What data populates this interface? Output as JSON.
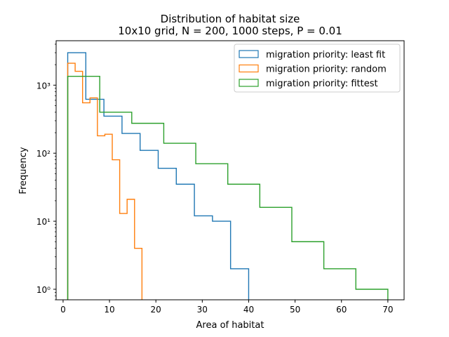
{
  "chart_data": {
    "type": "histogram",
    "title": "Distribution of habitat size",
    "subtitle": "10x10 grid, N = 200, 1000 steps, P = 0.01",
    "xlabel": "Area of habitat",
    "ylabel": "Frequency",
    "xlim": [
      -1.5,
      73.5
    ],
    "ylim": [
      0.7,
      4500
    ],
    "yscale": "log",
    "xticks": [
      0,
      10,
      20,
      30,
      40,
      50,
      60,
      70
    ],
    "xtick_labels": [
      "0",
      "10",
      "20",
      "30",
      "40",
      "50",
      "60",
      "70"
    ],
    "yticks": [
      1,
      10,
      100,
      1000
    ],
    "ytick_labels": [
      "10⁰",
      "10¹",
      "10²",
      "10³"
    ],
    "legend_position": "top-right",
    "series": [
      {
        "name": "migration priority: least fit",
        "color": "#1f77b4",
        "bin_edges": [
          1,
          4.9,
          8.8,
          12.7,
          16.6,
          20.5,
          24.4,
          28.3,
          32.2,
          36.1,
          40
        ],
        "counts": [
          3000,
          620,
          350,
          195,
          110,
          60,
          35,
          12,
          10,
          2
        ]
      },
      {
        "name": "migration priority: random",
        "color": "#ff7f0e",
        "bin_edges": [
          1,
          2.6,
          4.2,
          5.8,
          7.4,
          9.0,
          10.6,
          12.2,
          13.8,
          15.4,
          17
        ],
        "counts": [
          2100,
          1600,
          550,
          650,
          180,
          190,
          80,
          13,
          21,
          4
        ]
      },
      {
        "name": "migration priority: fittest",
        "color": "#2ca02c",
        "bin_edges": [
          1,
          7.9,
          14.8,
          21.7,
          28.6,
          35.5,
          42.4,
          49.3,
          56.2,
          63.1,
          70
        ],
        "counts": [
          1350,
          400,
          275,
          140,
          70,
          35,
          16,
          5,
          2,
          1
        ]
      }
    ]
  }
}
